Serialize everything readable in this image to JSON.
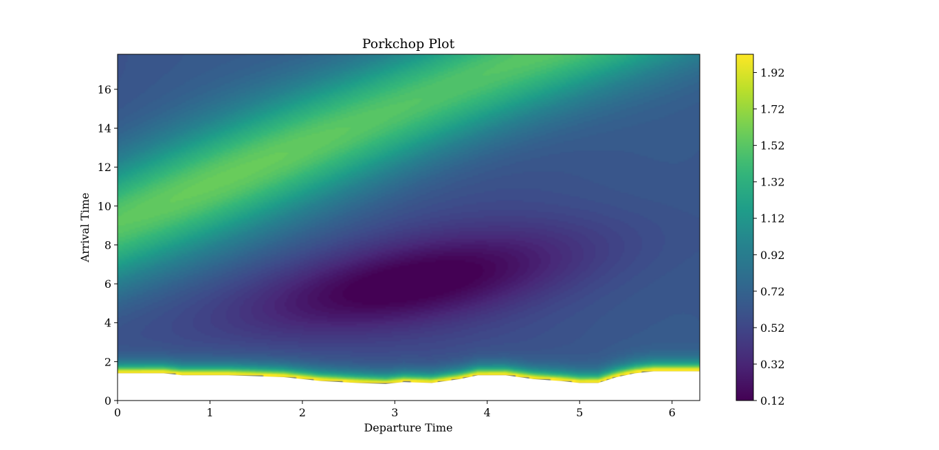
{
  "chart_data": {
    "type": "heatmap",
    "subtype": "filled-contour",
    "title": "Porkchop Plot",
    "xlabel": "Departure Time",
    "ylabel": "Arrival Time",
    "xlim": [
      0,
      6.3
    ],
    "ylim": [
      0,
      17.8
    ],
    "xticks": [
      "0",
      "1",
      "2",
      "3",
      "4",
      "5",
      "6"
    ],
    "yticks": [
      "0",
      "2",
      "4",
      "6",
      "8",
      "10",
      "12",
      "14",
      "16"
    ],
    "colorbar": {
      "colormap": "viridis",
      "range": [
        0.12,
        2.02
      ],
      "tick_labels": [
        "0.12",
        "0.32",
        "0.52",
        "0.72",
        "0.92",
        "1.12",
        "1.32",
        "1.52",
        "1.72",
        "1.92"
      ]
    },
    "features": {
      "minimum": {
        "x": 3.1,
        "y": 6.0,
        "value": 0.12
      },
      "high_ridge": {
        "from": [
          0.0,
          9.2
        ],
        "to": [
          4.5,
          17.8
        ],
        "value": 1.55
      },
      "undefined_region_upper_edge": {
        "x": [
          0.0,
          0.5,
          0.7,
          1.2,
          1.8,
          2.2,
          2.6,
          2.9,
          3.1,
          3.4,
          3.7,
          3.9,
          4.2,
          4.5,
          4.8,
          5.0,
          5.2,
          5.4,
          5.6,
          5.8,
          6.0,
          6.3
        ],
        "y": [
          1.4,
          1.4,
          1.3,
          1.3,
          1.2,
          1.0,
          0.9,
          0.85,
          0.95,
          0.9,
          1.1,
          1.3,
          1.3,
          1.1,
          1.0,
          0.9,
          0.9,
          1.2,
          1.4,
          1.5,
          1.5,
          1.5
        ]
      }
    }
  }
}
